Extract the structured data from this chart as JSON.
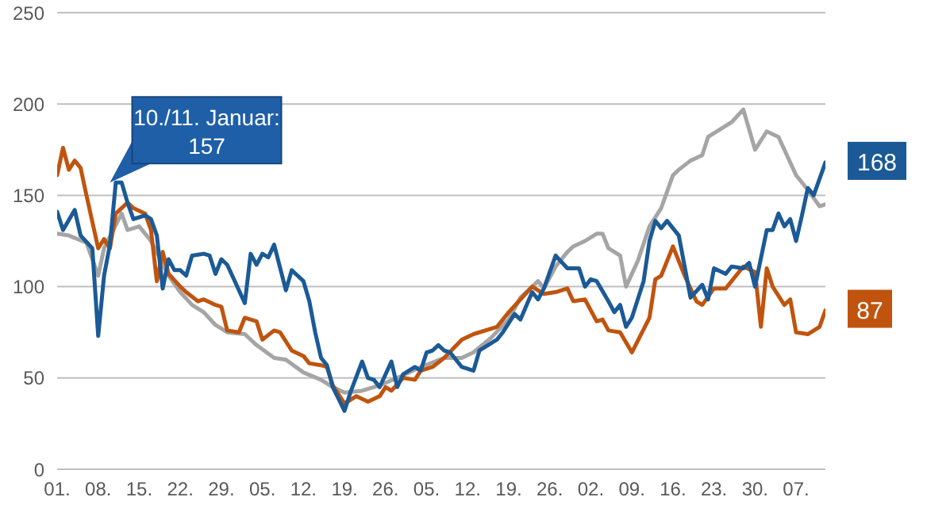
{
  "chart_data": {
    "type": "line",
    "xlim": [
      "--01-01",
      "--05-12"
    ],
    "ylim": [
      0,
      250
    ],
    "yticks": [
      0,
      50,
      100,
      150,
      200,
      250
    ],
    "xticks": [
      {
        "value": "--01-01",
        "label": "01."
      },
      {
        "value": "--01-08",
        "label": "08."
      },
      {
        "value": "--01-15",
        "label": "15."
      },
      {
        "value": "--01-22",
        "label": "22."
      },
      {
        "value": "--01-29",
        "label": "29."
      },
      {
        "value": "--02-05",
        "label": "05."
      },
      {
        "value": "--02-12",
        "label": "12."
      },
      {
        "value": "--02-19",
        "label": "19."
      },
      {
        "value": "--02-26",
        "label": "26."
      },
      {
        "value": "--03-05",
        "label": "05."
      },
      {
        "value": "--03-12",
        "label": "12."
      },
      {
        "value": "--03-19",
        "label": "19."
      },
      {
        "value": "--03-26",
        "label": "26."
      },
      {
        "value": "--04-02",
        "label": "02."
      },
      {
        "value": "--04-09",
        "label": "09."
      },
      {
        "value": "--04-16",
        "label": "16."
      },
      {
        "value": "--04-23",
        "label": "23."
      },
      {
        "value": "--04-30",
        "label": "30."
      },
      {
        "value": "--05-07",
        "label": "07."
      }
    ],
    "grid": "y",
    "legend": false,
    "marker": "none",
    "line_style": "solid",
    "annotations": [
      {
        "text": "10./11. Januar: 157",
        "x": "--01-10",
        "y": 157
      }
    ],
    "series": [
      {
        "color": "#a5a5a5",
        "x": [
          "--01-01",
          "--01-03",
          "--01-06",
          "--01-08",
          "--01-09",
          "--01-12",
          "--01-13",
          "--01-15",
          "--01-17",
          "--01-18",
          "--01-20",
          "--01-22",
          "--01-24",
          "--01-26",
          "--01-28",
          "--01-30",
          "--02-02",
          "--02-04",
          "--02-07",
          "--02-09",
          "--02-12",
          "--02-15",
          "--02-17",
          "--02-19",
          "--02-22",
          "--02-25",
          "--02-28",
          "--03-04",
          "--03-08",
          "--03-11",
          "--03-13",
          "--03-16",
          "--03-19",
          "--03-21",
          "--03-24",
          "--03-25",
          "--03-27",
          "--03-29",
          "--03-30",
          "--04-01",
          "--04-03",
          "--04-04",
          "--04-05",
          "--04-07",
          "--04-08",
          "--04-10",
          "--04-12",
          "--04-14",
          "--04-16",
          "--04-17",
          "--04-19",
          "--04-21",
          "--04-22",
          "--04-24",
          "--04-26",
          "--04-28",
          "--04-30",
          "--05-02",
          "--05-04",
          "--05-07",
          "--05-09",
          "--05-11",
          "--05-12"
        ],
        "values": [
          129,
          128,
          124,
          106,
          121,
          140,
          131,
          133,
          125,
          119,
          106,
          97,
          90,
          86,
          79,
          75,
          74,
          68,
          61,
          60,
          53,
          49,
          45,
          42,
          43,
          46,
          50,
          56,
          61,
          61,
          64,
          72,
          82,
          94,
          103,
          99,
          111,
          119,
          122,
          125,
          129,
          129,
          121,
          117,
          100,
          114,
          133,
          143,
          161,
          164,
          169,
          172,
          182,
          186,
          190,
          197,
          175,
          185,
          182,
          161,
          153,
          144,
          145
        ]
      },
      {
        "color": "#c0540f",
        "x": [
          "--01-01",
          "--01-02",
          "--01-03",
          "--01-04",
          "--01-05",
          "--01-06",
          "--01-08",
          "--01-09",
          "--01-10",
          "--01-11",
          "--01-13",
          "--01-14",
          "--01-16",
          "--01-17",
          "--01-18",
          "--01-19",
          "--01-20",
          "--01-22",
          "--01-23",
          "--01-25",
          "--01-26",
          "--01-28",
          "--01-29",
          "--01-30",
          "--02-01",
          "--02-02",
          "--02-04",
          "--02-05",
          "--02-07",
          "--02-08",
          "--02-10",
          "--02-12",
          "--02-13",
          "--02-15",
          "--02-16",
          "--02-17",
          "--02-19",
          "--02-21",
          "--02-23",
          "--02-25",
          "--02-26",
          "--02-27",
          "--03-01",
          "--03-03",
          "--03-04",
          "--03-06",
          "--03-08",
          "--03-11",
          "--03-13",
          "--03-17",
          "--03-19",
          "--03-21",
          "--03-23",
          "--03-25",
          "--03-27",
          "--03-29",
          "--03-30",
          "--04-01",
          "--04-03",
          "--04-04",
          "--04-05",
          "--04-07",
          "--04-09",
          "--04-12",
          "--04-13",
          "--04-14",
          "--04-16",
          "--04-18",
          "--04-20",
          "--04-21",
          "--04-23",
          "--04-25",
          "--04-27",
          "--04-28",
          "--04-30",
          "--05-01",
          "--05-02",
          "--05-03",
          "--05-05",
          "--05-06",
          "--05-07",
          "--05-09",
          "--05-11",
          "--05-12"
        ],
        "values": [
          161,
          176,
          164,
          169,
          165,
          150,
          121,
          126,
          121,
          140,
          146,
          143,
          140,
          131,
          103,
          119,
          107,
          100,
          97,
          92,
          93,
          90,
          89,
          76,
          75,
          83,
          81,
          71,
          76,
          75,
          65,
          62,
          58,
          57,
          56,
          46,
          36,
          40,
          37,
          40,
          45,
          43,
          50,
          49,
          54,
          56,
          61,
          71,
          74,
          78,
          86,
          93,
          100,
          96,
          97,
          99,
          92,
          93,
          81,
          82,
          76,
          75,
          64,
          83,
          104,
          106,
          122,
          106,
          92,
          90,
          99,
          99,
          107,
          111,
          108,
          78,
          110,
          100,
          90,
          93,
          75,
          74,
          78,
          87
        ],
        "value_labels": [
          null,
          null,
          null,
          null,
          null,
          null,
          null,
          null,
          null,
          null,
          null,
          null,
          null,
          null,
          null,
          null,
          null,
          null,
          null,
          null,
          null,
          null,
          null,
          null,
          null,
          null,
          null,
          null,
          null,
          null,
          null,
          null,
          null,
          null,
          null,
          null,
          null,
          null,
          null,
          null,
          null,
          null,
          null,
          null,
          null,
          null,
          null,
          null,
          null,
          null,
          null,
          null,
          null,
          null,
          null,
          null,
          null,
          null,
          null,
          null,
          null,
          null,
          null,
          null,
          null,
          null,
          null,
          null,
          null,
          null,
          null,
          null,
          null,
          null,
          null,
          null,
          null,
          null,
          null,
          null,
          null,
          null,
          null,
          "87"
        ]
      },
      {
        "color": "#1b5a96",
        "x": [
          "--01-01",
          "--01-02",
          "--01-04",
          "--01-05",
          "--01-07",
          "--01-08",
          "--01-09",
          "--01-10",
          "--01-11",
          "--01-12",
          "--01-13",
          "--01-14",
          "--01-16",
          "--01-17",
          "--01-18",
          "--01-19",
          "--01-20",
          "--01-21",
          "--01-22",
          "--01-23",
          "--01-24",
          "--01-26",
          "--01-27",
          "--01-28",
          "--01-29",
          "--01-30",
          "--01-31",
          "--02-02",
          "--02-03",
          "--02-04",
          "--02-05",
          "--02-06",
          "--02-07",
          "--02-09",
          "--02-10",
          "--02-11",
          "--02-12",
          "--02-13",
          "--02-14",
          "--02-15",
          "--02-16",
          "--02-17",
          "--02-19",
          "--02-20",
          "--02-22",
          "--02-23",
          "--02-24",
          "--02-25",
          "--02-26",
          "--02-27",
          "--02-28",
          "--03-01",
          "--03-03",
          "--03-04",
          "--03-05",
          "--03-06",
          "--03-07",
          "--03-08",
          "--03-09",
          "--03-11",
          "--03-13",
          "--03-14",
          "--03-17",
          "--03-18",
          "--03-20",
          "--03-21",
          "--03-23",
          "--03-24",
          "--03-25",
          "--03-27",
          "--03-29",
          "--03-31",
          "--04-01",
          "--04-02",
          "--04-03",
          "--04-05",
          "--04-06",
          "--04-07",
          "--04-08",
          "--04-09",
          "--04-11",
          "--04-12",
          "--04-13",
          "--04-14",
          "--04-15",
          "--04-17",
          "--04-18",
          "--04-19",
          "--04-21",
          "--04-22",
          "--04-23",
          "--04-25",
          "--04-26",
          "--04-28",
          "--04-29",
          "--04-30",
          "--05-02",
          "--05-03",
          "--05-04",
          "--05-05",
          "--05-06",
          "--05-07",
          "--05-08",
          "--05-09",
          "--05-10",
          "--05-12"
        ],
        "values": [
          141,
          131,
          142,
          128,
          121,
          73,
          106,
          123,
          157,
          157,
          146,
          137,
          139,
          137,
          128,
          99,
          115,
          109,
          109,
          106,
          117,
          118,
          117,
          107,
          115,
          112,
          105,
          91,
          118,
          112,
          118,
          116,
          123,
          98,
          109,
          106,
          103,
          92,
          75,
          61,
          57,
          45,
          32,
          42,
          59,
          50,
          49,
          45,
          52,
          59,
          45,
          52,
          56,
          54,
          64,
          65,
          68,
          65,
          64,
          56,
          54,
          65,
          71,
          75,
          85,
          82,
          97,
          93,
          99,
          117,
          110,
          110,
          100,
          104,
          103,
          92,
          86,
          90,
          78,
          83,
          103,
          125,
          136,
          132,
          136,
          128,
          111,
          94,
          101,
          93,
          110,
          107,
          111,
          110,
          113,
          100,
          131,
          131,
          140,
          133,
          137,
          125,
          139,
          154,
          150,
          168
        ],
        "value_labels": [
          null,
          null,
          null,
          null,
          null,
          null,
          null,
          null,
          null,
          null,
          null,
          null,
          null,
          null,
          null,
          null,
          null,
          null,
          null,
          null,
          null,
          null,
          null,
          null,
          null,
          null,
          null,
          null,
          null,
          null,
          null,
          null,
          null,
          null,
          null,
          null,
          null,
          null,
          null,
          null,
          null,
          null,
          null,
          null,
          null,
          null,
          null,
          null,
          null,
          null,
          null,
          null,
          null,
          null,
          null,
          null,
          null,
          null,
          null,
          null,
          null,
          null,
          null,
          null,
          null,
          null,
          null,
          null,
          null,
          null,
          null,
          null,
          null,
          null,
          null,
          null,
          null,
          null,
          null,
          null,
          null,
          null,
          null,
          null,
          null,
          null,
          null,
          null,
          null,
          null,
          null,
          null,
          null,
          null,
          null,
          null,
          null,
          null,
          null,
          null,
          null,
          null,
          null,
          null,
          null,
          "168"
        ]
      }
    ]
  }
}
